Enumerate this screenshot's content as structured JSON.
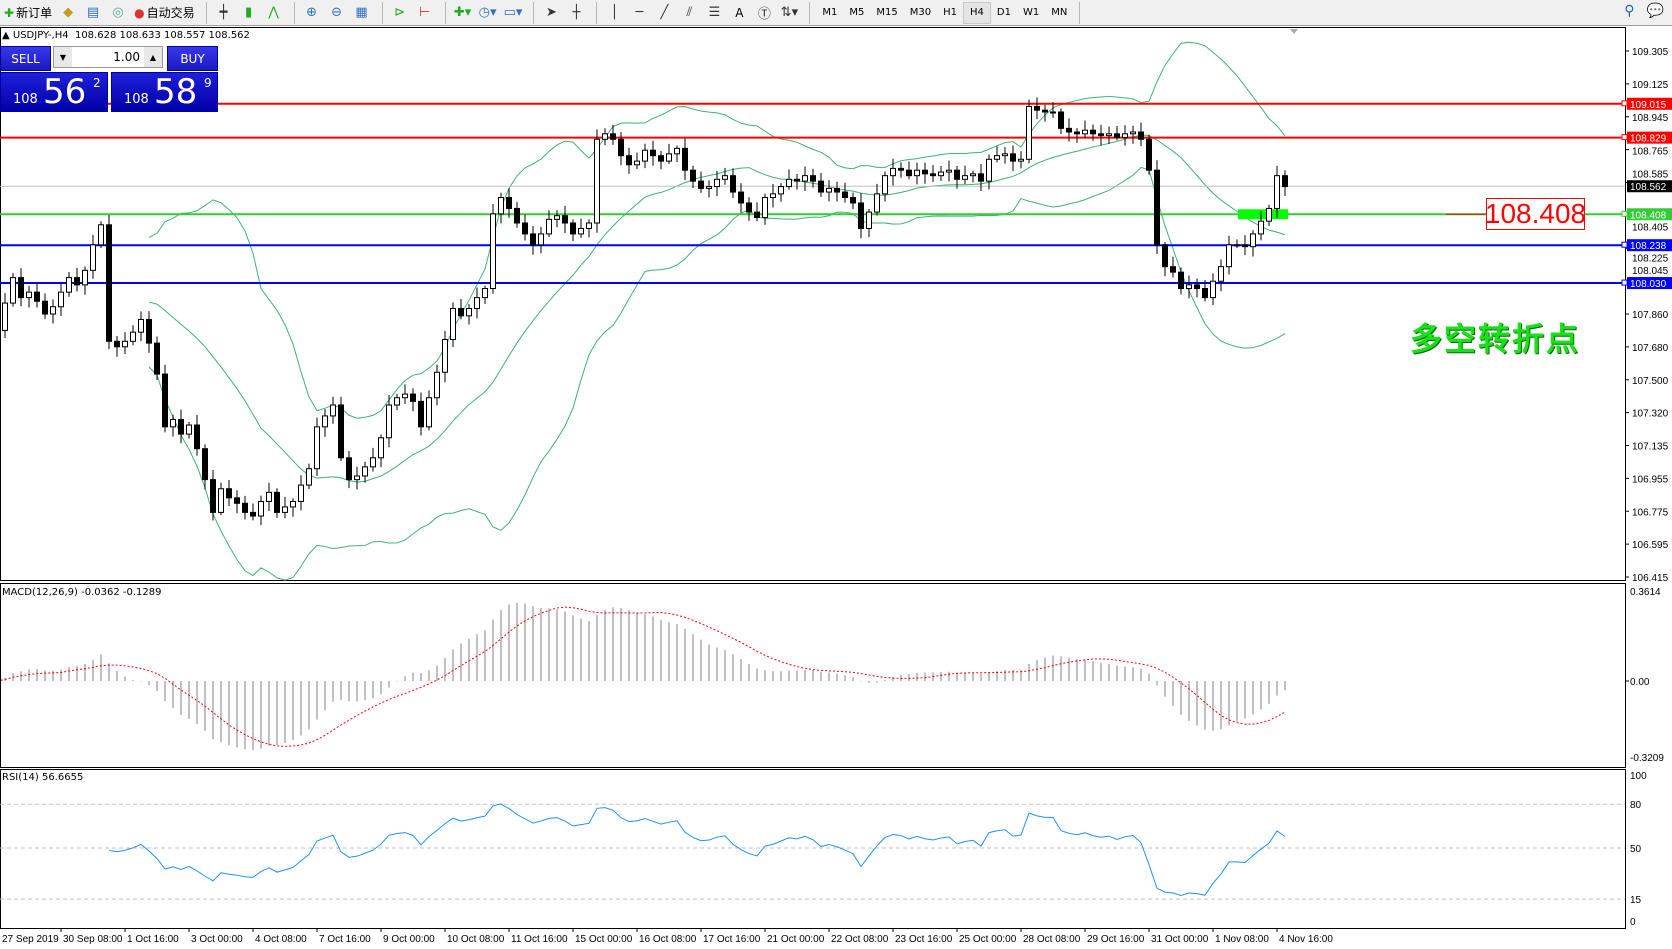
{
  "toolbar": {
    "new_order_label": "新订单",
    "auto_trading_label": "自动交易",
    "icons": [
      "market-watch-icon",
      "data-window-icon",
      "navigator-icon",
      "bar-chart-icon",
      "candlestick-icon",
      "line-chart-icon",
      "zoom-in-icon",
      "zoom-out-icon",
      "tile-windows-icon",
      "autoscroll-icon",
      "chart-shift-icon",
      "indicators-icon",
      "periods-icon",
      "templates-icon",
      "cursor-icon",
      "crosshair-icon",
      "vertical-line-icon",
      "horizontal-line-icon",
      "trendline-icon",
      "fibonacci-icon",
      "equidistant-channel-icon",
      "text-icon",
      "text-label-icon",
      "arrows-icon"
    ],
    "text_tool": "A",
    "timeframes": [
      "M1",
      "M5",
      "M15",
      "M30",
      "H1",
      "H4",
      "D1",
      "W1",
      "MN"
    ],
    "active_timeframe": "H4"
  },
  "chart_header": {
    "symbol": "USDJPY-,H4",
    "ohlc": "108.628 108.633 108.557 108.562"
  },
  "one_click": {
    "sell_label": "SELL",
    "buy_label": "BUY",
    "lot": "1.00",
    "sell_big": "108",
    "sell_main": "56",
    "sell_sup": "2",
    "buy_big": "108",
    "buy_main": "58",
    "buy_sup": "9"
  },
  "price_axis": {
    "ticks": [
      "109.305",
      "109.125",
      "108.945",
      "108.765",
      "108.585",
      "108.405",
      "108.225",
      "108.045",
      "107.860",
      "107.680",
      "107.500",
      "107.320",
      "107.135",
      "106.955",
      "106.775",
      "106.595",
      "106.415"
    ],
    "range": [
      106.415,
      109.305
    ]
  },
  "levels": [
    {
      "price": "109.015",
      "color": "#ff0000"
    },
    {
      "price": "108.829",
      "color": "#ff0000"
    },
    {
      "price": "108.408",
      "color": "#33cc33"
    },
    {
      "price": "108.238",
      "color": "#0000ff"
    },
    {
      "price": "108.030",
      "color": "#0000ff"
    }
  ],
  "bid_line": {
    "price": "108.562",
    "color": "#c0c0c0"
  },
  "annotation": {
    "price_label": "108.408",
    "note": "多空转折点",
    "note_color": "#19e019",
    "label_color": "#ff0000"
  },
  "macd": {
    "label": "MACD(12,26,9) -0.0362 -0.1289",
    "ticks": [
      "0.3614",
      "0.00",
      "-0.3209"
    ],
    "range": [
      -0.3209,
      0.3614
    ],
    "hist_color": "#c0c0c0",
    "signal_color": "#ff0000"
  },
  "rsi": {
    "label": "RSI(14) 56.6655",
    "ticks": [
      "100",
      "80",
      "50",
      "15",
      "0"
    ],
    "levels": [
      80,
      50,
      15
    ],
    "color": "#1e90ff"
  },
  "bands_color": "#3cb371",
  "time_axis": [
    "27 Sep 2019",
    "30 Sep 08:00",
    "1 Oct 16:00",
    "3 Oct 00:00",
    "4 Oct 08:00",
    "7 Oct 16:00",
    "9 Oct 00:00",
    "10 Oct 08:00",
    "11 Oct 16:00",
    "15 Oct 00:00",
    "16 Oct 08:00",
    "17 Oct 16:00",
    "21 Oct 00:00",
    "22 Oct 08:00",
    "23 Oct 16:00",
    "25 Oct 00:00",
    "28 Oct 08:00",
    "29 Oct 16:00",
    "31 Oct 00:00",
    "1 Nov 08:00",
    "4 Nov 16:00"
  ],
  "chart_data": {
    "type": "candlestick",
    "closes": [
      107.77,
      107.92,
      108.06,
      107.95,
      107.98,
      107.93,
      107.86,
      107.9,
      107.98,
      108.06,
      108.02,
      108.1,
      108.24,
      108.35,
      107.71,
      107.68,
      107.71,
      107.76,
      107.83,
      107.7,
      107.53,
      107.24,
      107.28,
      107.2,
      107.25,
      107.12,
      106.95,
      106.77,
      106.9,
      106.85,
      106.82,
      106.77,
      106.75,
      106.83,
      106.88,
      106.77,
      106.8,
      106.83,
      106.92,
      107.01,
      107.24,
      107.3,
      107.36,
      107.07,
      106.95,
      106.97,
      107.02,
      107.07,
      107.18,
      107.36,
      107.4,
      107.42,
      107.38,
      107.24,
      107.4,
      107.54,
      107.72,
      107.89,
      107.85,
      107.89,
      107.95,
      108.0,
      108.41,
      108.5,
      108.44,
      108.36,
      108.3,
      108.24,
      108.3,
      108.38,
      108.4,
      108.36,
      108.3,
      108.33,
      108.36,
      108.82,
      108.85,
      108.82,
      108.73,
      108.68,
      108.7,
      108.76,
      108.73,
      108.7,
      108.74,
      108.77,
      108.65,
      108.59,
      108.55,
      108.56,
      108.6,
      108.62,
      108.53,
      108.47,
      108.42,
      108.39,
      108.5,
      108.52,
      108.56,
      108.6,
      108.59,
      108.62,
      108.59,
      108.53,
      108.55,
      108.53,
      108.5,
      108.47,
      108.33,
      108.42,
      108.52,
      108.62,
      108.66,
      108.65,
      108.62,
      108.65,
      108.63,
      108.62,
      108.64,
      108.65,
      108.6,
      108.62,
      108.63,
      108.59,
      108.71,
      108.73,
      108.74,
      108.7,
      108.71,
      109.0,
      108.98,
      108.97,
      108.97,
      108.88,
      108.86,
      108.85,
      108.87,
      108.85,
      108.84,
      108.85,
      108.83,
      108.85,
      108.86,
      108.82,
      108.65,
      108.24,
      108.12,
      108.09,
      108.0,
      108.02,
      108.0,
      107.95,
      108.04,
      108.12,
      108.24,
      108.24,
      108.23,
      108.3,
      108.37,
      108.44,
      108.62,
      108.56
    ]
  }
}
